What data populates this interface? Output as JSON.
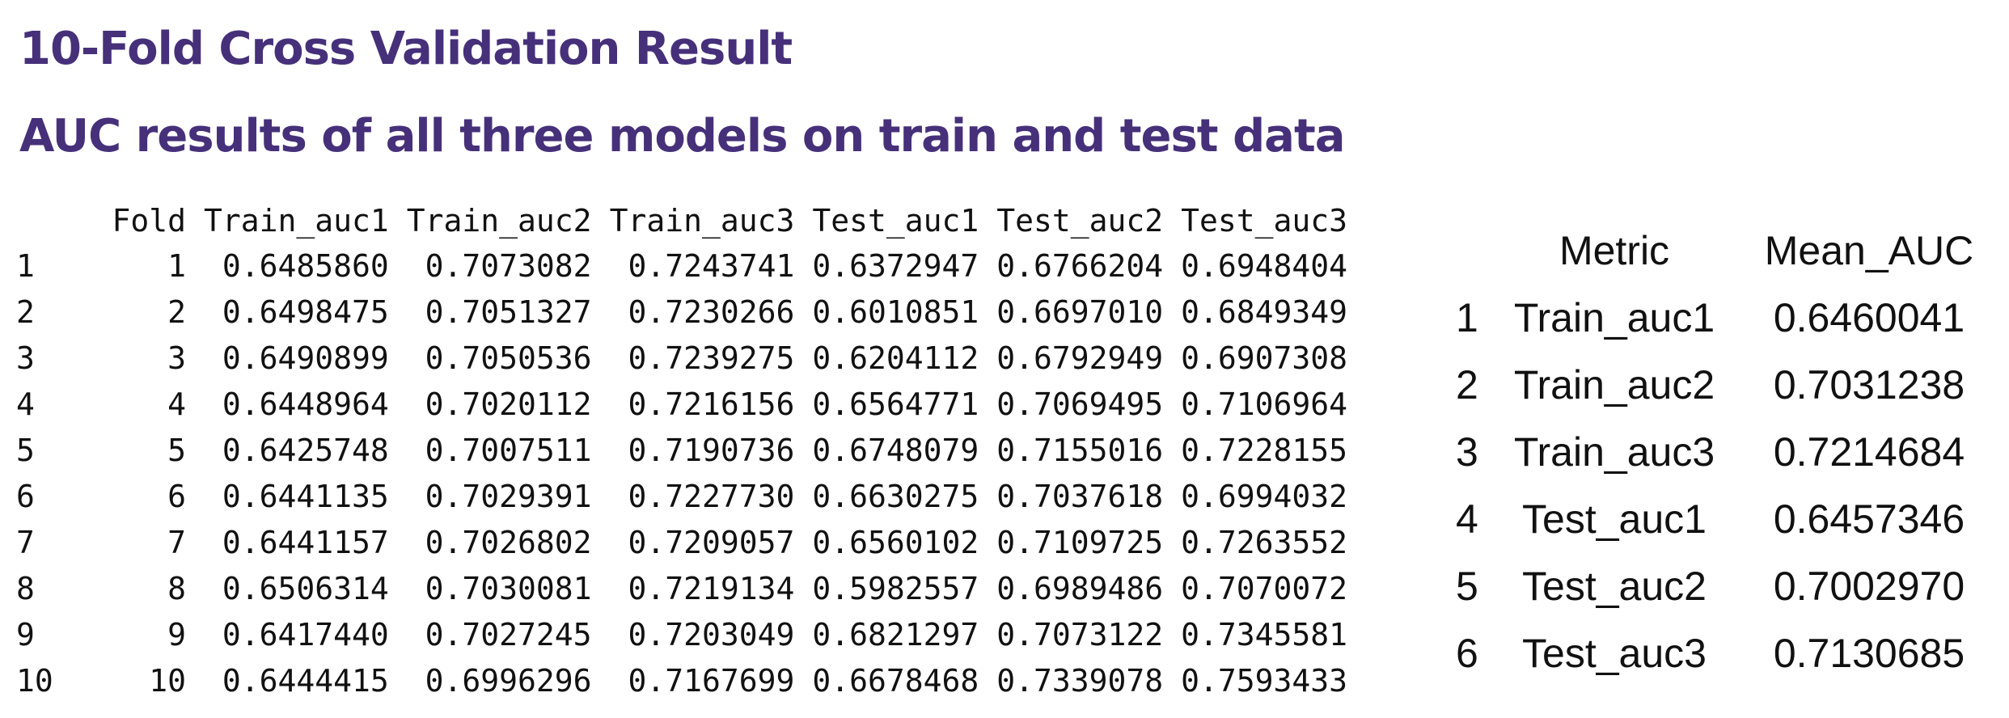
{
  "title": "10-Fold Cross Validation Result",
  "subtitle": "AUC results of all three models on train and test data",
  "folds_table": {
    "headers": [
      "",
      "Fold",
      "Train_auc1",
      "Train_auc2",
      "Train_auc3",
      "Test_auc1",
      "Test_auc2",
      "Test_auc3"
    ],
    "rows": [
      [
        "1",
        "1",
        "0.6485860",
        "0.7073082",
        "0.7243741",
        "0.6372947",
        "0.6766204",
        "0.6948404"
      ],
      [
        "2",
        "2",
        "0.6498475",
        "0.7051327",
        "0.7230266",
        "0.6010851",
        "0.6697010",
        "0.6849349"
      ],
      [
        "3",
        "3",
        "0.6490899",
        "0.7050536",
        "0.7239275",
        "0.6204112",
        "0.6792949",
        "0.6907308"
      ],
      [
        "4",
        "4",
        "0.6448964",
        "0.7020112",
        "0.7216156",
        "0.6564771",
        "0.7069495",
        "0.7106964"
      ],
      [
        "5",
        "5",
        "0.6425748",
        "0.7007511",
        "0.7190736",
        "0.6748079",
        "0.7155016",
        "0.7228155"
      ],
      [
        "6",
        "6",
        "0.6441135",
        "0.7029391",
        "0.7227730",
        "0.6630275",
        "0.7037618",
        "0.6994032"
      ],
      [
        "7",
        "7",
        "0.6441157",
        "0.7026802",
        "0.7209057",
        "0.6560102",
        "0.7109725",
        "0.7263552"
      ],
      [
        "8",
        "8",
        "0.6506314",
        "0.7030081",
        "0.7219134",
        "0.5982557",
        "0.6989486",
        "0.7070072"
      ],
      [
        "9",
        "9",
        "0.6417440",
        "0.7027245",
        "0.7203049",
        "0.6821297",
        "0.7073122",
        "0.7345581"
      ],
      [
        "10",
        "10",
        "0.6444415",
        "0.6996296",
        "0.7167699",
        "0.6678468",
        "0.7339078",
        "0.7593433"
      ]
    ]
  },
  "summary_table": {
    "headers": [
      "",
      "Metric",
      "Mean_AUC"
    ],
    "rows": [
      [
        "1",
        "Train_auc1",
        "0.6460041"
      ],
      [
        "2",
        "Train_auc2",
        "0.7031238"
      ],
      [
        "3",
        "Train_auc3",
        "0.7214684"
      ],
      [
        "4",
        "Test_auc1",
        "0.6457346"
      ],
      [
        "5",
        "Test_auc2",
        "0.7002970"
      ],
      [
        "6",
        "Test_auc3",
        "0.7130685"
      ]
    ]
  },
  "colors": {
    "title": "#46307a",
    "text": "#111111",
    "background": "#ffffff"
  }
}
